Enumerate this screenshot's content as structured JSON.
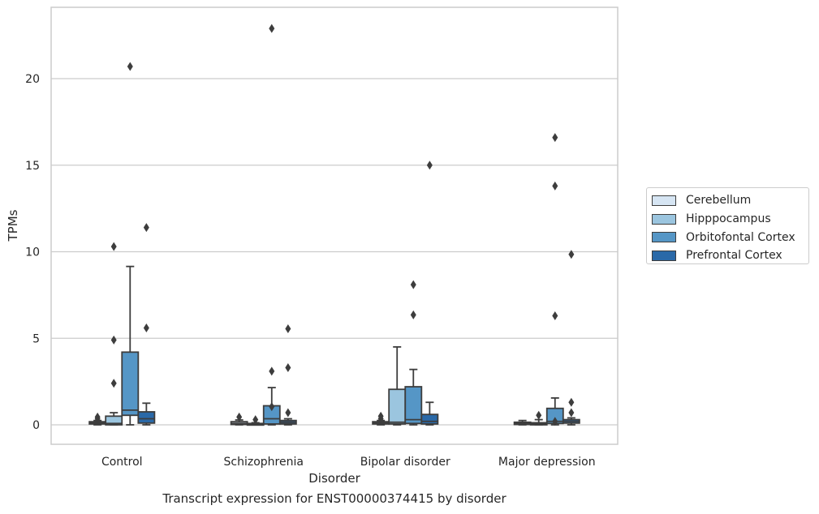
{
  "caption": "Transcript expression for ENST00000374415 by disorder",
  "chart_data": {
    "type": "box",
    "xlabel": "Disorder",
    "ylabel": "TPMs",
    "ylim": [
      -1.1,
      24
    ],
    "yticks": [
      0,
      5,
      10,
      15,
      20
    ],
    "grid": "horizontal",
    "legend_position": "right",
    "categories": [
      "Control",
      "Schizophrenia",
      "Bipolar disorder",
      "Major depression"
    ],
    "series": [
      {
        "name": "Cerebellum",
        "color": "#d6e5f3",
        "boxes": [
          {
            "whislo": 0.0,
            "q1": 0.05,
            "med": 0.1,
            "q3": 0.18,
            "whishi": 0.25,
            "fliers": [
              0.35,
              0.45
            ]
          },
          {
            "whislo": 0.0,
            "q1": 0.02,
            "med": 0.08,
            "q3": 0.18,
            "whishi": 0.28,
            "fliers": [
              0.45
            ]
          },
          {
            "whislo": 0.0,
            "q1": 0.05,
            "med": 0.1,
            "q3": 0.18,
            "whishi": 0.25,
            "fliers": [
              0.35,
              0.5
            ]
          },
          {
            "whislo": 0.0,
            "q1": 0.02,
            "med": 0.08,
            "q3": 0.15,
            "whishi": 0.25,
            "fliers": []
          }
        ]
      },
      {
        "name": "Hipppocampus",
        "color": "#9bc5df",
        "boxes": [
          {
            "whislo": 0.0,
            "q1": 0.0,
            "med": 0.08,
            "q3": 0.5,
            "whishi": 0.7,
            "fliers": [
              2.4,
              4.9,
              10.3
            ]
          },
          {
            "whislo": 0.0,
            "q1": 0.0,
            "med": 0.03,
            "q3": 0.08,
            "whishi": 0.12,
            "fliers": [
              0.3
            ]
          },
          {
            "whislo": 0.0,
            "q1": 0.05,
            "med": 0.15,
            "q3": 2.05,
            "whishi": 4.5,
            "fliers": []
          },
          {
            "whislo": 0.0,
            "q1": 0.0,
            "med": 0.05,
            "q3": 0.12,
            "whishi": 0.3,
            "fliers": [
              0.55
            ]
          }
        ]
      },
      {
        "name": "Orbitofontal Cortex",
        "color": "#5596c6",
        "boxes": [
          {
            "whislo": 0.0,
            "q1": 0.55,
            "med": 0.85,
            "q3": 4.2,
            "whishi": 9.15,
            "fliers": [
              20.7
            ]
          },
          {
            "whislo": 0.0,
            "q1": 0.05,
            "med": 0.35,
            "q3": 1.1,
            "whishi": 2.15,
            "fliers": [
              1.05,
              3.1,
              22.9
            ]
          },
          {
            "whislo": 0.0,
            "q1": 0.08,
            "med": 0.3,
            "q3": 2.2,
            "whishi": 3.2,
            "fliers": [
              6.35,
              8.1
            ]
          },
          {
            "whislo": 0.0,
            "q1": 0.08,
            "med": 0.2,
            "q3": 0.95,
            "whishi": 1.55,
            "fliers": [
              0.2,
              6.3,
              13.8,
              16.6
            ]
          }
        ]
      },
      {
        "name": "Prefrontal Cortex",
        "color": "#2a69a8",
        "boxes": [
          {
            "whislo": 0.0,
            "q1": 0.1,
            "med": 0.35,
            "q3": 0.75,
            "whishi": 1.25,
            "fliers": [
              5.6,
              11.4
            ]
          },
          {
            "whislo": 0.0,
            "q1": 0.05,
            "med": 0.15,
            "q3": 0.25,
            "whishi": 0.35,
            "fliers": [
              0.7,
              3.3,
              5.55
            ]
          },
          {
            "whislo": 0.0,
            "q1": 0.05,
            "med": 0.2,
            "q3": 0.6,
            "whishi": 1.3,
            "fliers": [
              15.0
            ]
          },
          {
            "whislo": 0.0,
            "q1": 0.1,
            "med": 0.2,
            "q3": 0.3,
            "whishi": 0.4,
            "fliers": [
              0.7,
              1.3,
              9.85
            ]
          }
        ]
      }
    ]
  }
}
